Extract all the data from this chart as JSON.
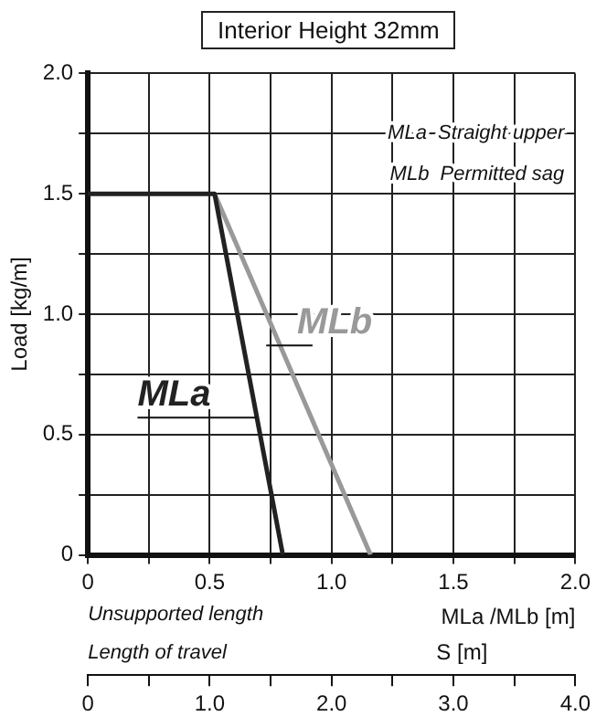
{
  "chart_data": {
    "type": "line",
    "title": "Interior Height 32mm",
    "ylabel": "Load [kg/m]",
    "xlabel": "MLa /MLb [m]",
    "x2label": "S [m]",
    "xlim": [
      0,
      2
    ],
    "xticks": [
      0,
      {
        "value": 0.25,
        "label": null
      },
      0.5,
      {
        "value": 0.75,
        "label": null
      },
      {
        "value": 1,
        "label": "1.0"
      },
      {
        "value": 1.25,
        "label": null
      },
      1.5,
      {
        "value": 1.75,
        "label": null
      },
      {
        "value": 2,
        "label": "2.0"
      }
    ],
    "x2lim": [
      0,
      4
    ],
    "x2ticks": [
      0,
      {
        "value": 0.5,
        "label": null
      },
      {
        "value": 1,
        "label": "1.0"
      },
      {
        "value": 1.5,
        "label": null
      },
      {
        "value": 2,
        "label": "2.0"
      },
      {
        "value": 2.5,
        "label": null
      },
      {
        "value": 3,
        "label": "3.0"
      },
      {
        "value": 3.5,
        "label": null
      },
      {
        "value": 4,
        "label": "4.0"
      }
    ],
    "ylim": [
      0,
      2
    ],
    "yticks": [
      0,
      {
        "value": 0.25,
        "label": null
      },
      0.5,
      {
        "value": 0.75,
        "label": null
      },
      {
        "value": 1,
        "label": "1.0"
      },
      {
        "value": 1.25,
        "label": null
      },
      1.5,
      {
        "value": 1.75,
        "label": null
      },
      {
        "value": 2,
        "label": "2.0"
      }
    ],
    "grid": true,
    "legend": false,
    "marker": "none",
    "line_style": "solid",
    "series": [
      {
        "name": "MLa",
        "color": "#222222",
        "x": [
          0,
          0.52,
          0.8
        ],
        "values": [
          1.5,
          1.5,
          0
        ]
      },
      {
        "name": "MLb",
        "color": "#999999",
        "x": [
          0.52,
          1.16
        ],
        "values": [
          1.5,
          0
        ]
      }
    ],
    "annotations": [
      "MLa  Straight upper",
      "MLb  Permitted sag",
      "Unsupported length",
      "Length of travel"
    ]
  }
}
